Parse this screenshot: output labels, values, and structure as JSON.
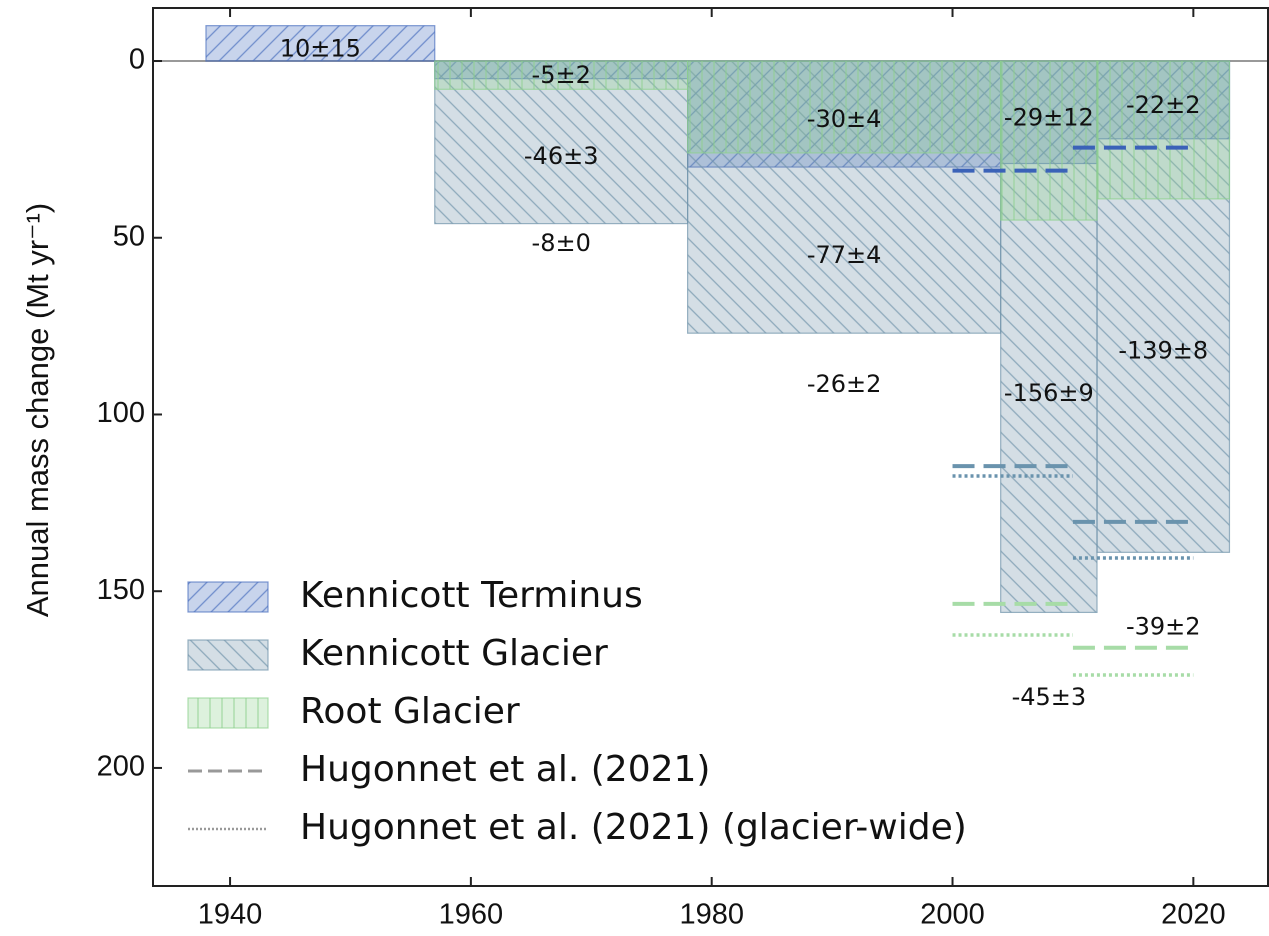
{
  "chart_data": {
    "type": "bar",
    "ylabel": "Annual mass change (Mt yr⁻¹)",
    "xlim": [
      1933.6,
      2026.2
    ],
    "xticks": [
      1940,
      1960,
      1980,
      2000,
      2020
    ],
    "ylim": [
      -233.4,
      15
    ],
    "yticks": [
      0,
      {
        "value": -50,
        "label": "50"
      },
      {
        "value": -100,
        "label": "100"
      },
      {
        "value": -150,
        "label": "150"
      },
      {
        "value": -200,
        "label": "200"
      }
    ],
    "series": [
      {
        "name": "Kennicott Terminus",
        "color": "#4a6fbf",
        "hatch": "/",
        "stack": false,
        "periods": [
          [
            1938,
            1957
          ],
          [
            1957,
            1978
          ],
          [
            1978,
            2004
          ],
          [
            2004,
            2012
          ],
          [
            2012,
            2023
          ]
        ],
        "values": [
          10,
          -5,
          -30,
          -29,
          -22
        ],
        "value_labels": [
          "10±15",
          "-5±2",
          "-30±4",
          "-29±12",
          "-22±2"
        ]
      },
      {
        "name": "Kennicott Glacier",
        "color": "#6f93aa",
        "hatch": "\\",
        "stack": false,
        "periods": [
          [
            1957,
            1978
          ],
          [
            1978,
            2004
          ],
          [
            2004,
            2012
          ],
          [
            2012,
            2023
          ]
        ],
        "values": [
          -46,
          -77,
          -156,
          -139
        ],
        "value_labels": [
          "-46±3",
          "-77±4",
          "-156±9",
          "-139±8"
        ]
      },
      {
        "name": "Root Glacier",
        "color": "#8fd18f",
        "hatch": "|",
        "stack": true,
        "periods": [
          [
            1957,
            1978
          ],
          [
            1978,
            2004
          ],
          [
            2004,
            2012
          ],
          [
            2012,
            2023
          ]
        ],
        "values": [
          -8,
          -26,
          -45,
          -39
        ],
        "value_labels": [
          "-8±0",
          "-26±2",
          "-45±3",
          "-39±2"
        ]
      }
    ],
    "reference_lines": [
      {
        "name": "Hugonnet et al. (2021)",
        "style": "dashed",
        "legend_color": "#999999",
        "segments": [
          {
            "x": [
              2000,
              2010
            ],
            "value": -31,
            "color": "#3a62b8"
          },
          {
            "x": [
              2010,
              2020
            ],
            "value": -24.5,
            "color": "#3a62b8"
          },
          {
            "x": [
              2000,
              2010
            ],
            "value": -114.6,
            "color": "#6a93ad"
          },
          {
            "x": [
              2010,
              2020
            ],
            "value": -130.4,
            "color": "#6a93ad"
          },
          {
            "x": [
              2000,
              2010
            ],
            "value": -153.6,
            "color": "#a7dca7"
          },
          {
            "x": [
              2010,
              2020
            ],
            "value": -166,
            "color": "#a7dca7"
          }
        ]
      },
      {
        "name": "Hugonnet et al. (2021) (glacier-wide)",
        "style": "dotted",
        "legend_color": "#999999",
        "segments": [
          {
            "x": [
              2000,
              2010
            ],
            "value": -117.4,
            "color": "#6a93ad"
          },
          {
            "x": [
              2010,
              2020
            ],
            "value": -140.6,
            "color": "#6a93ad"
          },
          {
            "x": [
              2000,
              2010
            ],
            "value": -162.4,
            "color": "#a7dca7"
          },
          {
            "x": [
              2010,
              2020
            ],
            "value": -173.7,
            "color": "#a7dca7"
          }
        ]
      }
    ]
  }
}
